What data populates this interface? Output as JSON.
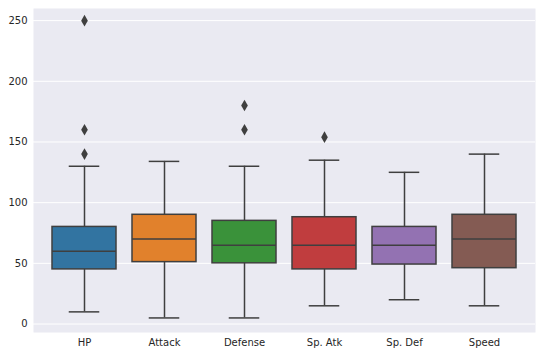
{
  "chart_data": {
    "type": "box",
    "categories": [
      "HP",
      "Attack",
      "Defense",
      "Sp. Atk",
      "Sp. Def",
      "Speed"
    ],
    "colors": [
      "#3274a1",
      "#e1812c",
      "#3a923a",
      "#c03d3e",
      "#9372b2",
      "#845b53"
    ],
    "stats": [
      {
        "whisker_low": 10,
        "q1": 45,
        "median": 60,
        "q3": 80,
        "whisker_high": 130,
        "outliers": [
          140,
          160,
          250
        ]
      },
      {
        "whisker_low": 5,
        "q1": 51,
        "median": 70,
        "q3": 90,
        "whisker_high": 134,
        "outliers": []
      },
      {
        "whisker_low": 5,
        "q1": 50,
        "median": 65,
        "q3": 85,
        "whisker_high": 130,
        "outliers": [
          160,
          180
        ]
      },
      {
        "whisker_low": 15,
        "q1": 45,
        "median": 65,
        "q3": 88,
        "whisker_high": 135,
        "outliers": [
          154
        ]
      },
      {
        "whisker_low": 20,
        "q1": 49,
        "median": 65,
        "q3": 80,
        "whisker_high": 125,
        "outliers": []
      },
      {
        "whisker_low": 15,
        "q1": 46,
        "median": 70,
        "q3": 90,
        "whisker_high": 140,
        "outliers": []
      }
    ],
    "marker": "diamond",
    "ylim": [
      -7,
      260
    ],
    "yticks": [
      0,
      50,
      100,
      150,
      200,
      250
    ],
    "grid": true
  }
}
